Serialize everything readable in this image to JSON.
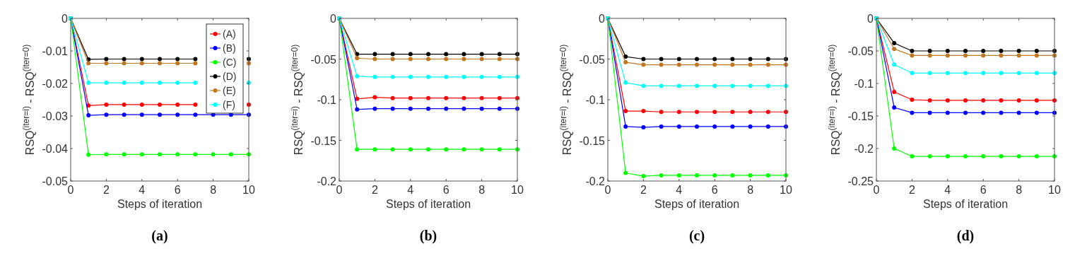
{
  "chart_data": [
    {
      "type": "line",
      "title": "(a)",
      "xlabel": "Steps of iteration",
      "ylabel": "RSQ$^{(iter=i)}$ - RSQ$^{(iter=0)}$",
      "x": [
        0,
        1,
        2,
        3,
        4,
        5,
        6,
        7,
        8,
        9,
        10
      ],
      "xlim": [
        0,
        10
      ],
      "xticks": [
        0,
        2,
        4,
        6,
        8,
        10
      ],
      "ylim": [
        -0.05,
        0
      ],
      "yticks": [
        -0.05,
        -0.04,
        -0.03,
        -0.02,
        -0.01,
        0
      ],
      "marker": "circle",
      "legend": "top right",
      "series": [
        {
          "name": "(A)",
          "color": "#ff0000",
          "values": [
            0,
            -0.0268,
            -0.0265,
            -0.0265,
            -0.0265,
            -0.0265,
            -0.0265,
            -0.0265,
            null,
            null,
            -0.0265
          ]
        },
        {
          "name": "(B)",
          "color": "#0000ff",
          "values": [
            0,
            -0.0298,
            -0.0296,
            -0.0296,
            -0.0296,
            -0.0296,
            -0.0296,
            -0.0296,
            -0.0296,
            -0.0296,
            -0.0296
          ]
        },
        {
          "name": "(C)",
          "color": "#00ff00",
          "values": [
            0,
            -0.0419,
            -0.0418,
            -0.0418,
            -0.0418,
            -0.0418,
            -0.0418,
            -0.0418,
            -0.0418,
            -0.0418,
            -0.0418
          ]
        },
        {
          "name": "(D)",
          "color": "#000000",
          "values": [
            0,
            -0.0126,
            -0.0125,
            -0.0125,
            -0.0125,
            -0.0125,
            -0.0125,
            -0.0125,
            null,
            null,
            -0.0125
          ]
        },
        {
          "name": "(E)",
          "color": "#c07820",
          "values": [
            0,
            -0.0138,
            -0.0138,
            -0.0138,
            -0.0138,
            -0.0138,
            -0.0138,
            -0.0138,
            null,
            null,
            -0.0138
          ]
        },
        {
          "name": "(F)",
          "color": "#00ffff",
          "values": [
            0,
            -0.0198,
            -0.0198,
            -0.0198,
            -0.0198,
            -0.0198,
            -0.0198,
            -0.0198,
            null,
            null,
            -0.0198
          ]
        }
      ]
    },
    {
      "type": "line",
      "title": "(b)",
      "xlabel": "Steps of iteration",
      "ylabel": "RSQ$^{(iter=i)}$ - RSQ$^{(iter=0)}$",
      "x": [
        0,
        1,
        2,
        3,
        4,
        5,
        6,
        7,
        8,
        9,
        10
      ],
      "xlim": [
        0,
        10
      ],
      "xticks": [
        0,
        2,
        4,
        6,
        8,
        10
      ],
      "ylim": [
        -0.2,
        0
      ],
      "yticks": [
        -0.2,
        -0.15,
        -0.1,
        -0.05,
        0
      ],
      "marker": "circle",
      "series": [
        {
          "color": "#ff0000",
          "values": [
            0,
            -0.099,
            -0.097,
            -0.098,
            -0.098,
            -0.098,
            -0.098,
            -0.098,
            -0.098,
            -0.098,
            -0.098
          ]
        },
        {
          "color": "#0000ff",
          "values": [
            0,
            -0.112,
            -0.111,
            -0.111,
            -0.111,
            -0.111,
            -0.111,
            -0.111,
            -0.111,
            -0.111,
            -0.111
          ]
        },
        {
          "color": "#00ff00",
          "values": [
            0,
            -0.161,
            -0.161,
            -0.161,
            -0.161,
            -0.161,
            -0.161,
            -0.161,
            -0.161,
            -0.161,
            -0.161
          ]
        },
        {
          "color": "#000000",
          "values": [
            0,
            -0.044,
            -0.044,
            -0.044,
            -0.044,
            -0.044,
            -0.044,
            -0.044,
            -0.044,
            -0.044,
            -0.044
          ]
        },
        {
          "color": "#c07820",
          "values": [
            0,
            -0.049,
            -0.05,
            -0.05,
            -0.05,
            -0.05,
            -0.05,
            -0.05,
            -0.05,
            -0.05,
            -0.05
          ]
        },
        {
          "color": "#00ffff",
          "values": [
            0,
            -0.071,
            -0.072,
            -0.072,
            -0.072,
            -0.072,
            -0.072,
            -0.072,
            -0.072,
            -0.072,
            -0.072
          ]
        }
      ]
    },
    {
      "type": "line",
      "title": "(c)",
      "xlabel": "Steps of iteration",
      "ylabel": "RSQ$^{(iter=i)}$ - RSQ$^{(iter=0)}$",
      "x": [
        0,
        1,
        2,
        3,
        4,
        5,
        6,
        7,
        8,
        9,
        10
      ],
      "xlim": [
        0,
        10
      ],
      "xticks": [
        0,
        2,
        4,
        6,
        8,
        10
      ],
      "ylim": [
        -0.2,
        0
      ],
      "yticks": [
        -0.2,
        -0.15,
        -0.1,
        -0.05,
        0
      ],
      "marker": "circle",
      "series": [
        {
          "color": "#ff0000",
          "values": [
            0,
            -0.114,
            -0.114,
            -0.115,
            -0.115,
            -0.115,
            -0.115,
            -0.115,
            -0.115,
            -0.115,
            -0.115
          ]
        },
        {
          "color": "#0000ff",
          "values": [
            0,
            -0.133,
            -0.134,
            -0.133,
            -0.133,
            -0.133,
            -0.133,
            -0.133,
            -0.133,
            -0.133,
            -0.133
          ]
        },
        {
          "color": "#00ff00",
          "values": [
            0,
            -0.19,
            -0.194,
            -0.193,
            -0.193,
            -0.193,
            -0.193,
            -0.193,
            -0.193,
            -0.193,
            -0.193
          ]
        },
        {
          "color": "#000000",
          "values": [
            0,
            -0.047,
            -0.05,
            -0.05,
            -0.05,
            -0.05,
            -0.05,
            -0.05,
            -0.05,
            -0.05,
            -0.05
          ]
        },
        {
          "color": "#c07820",
          "values": [
            0,
            -0.054,
            -0.057,
            -0.057,
            -0.057,
            -0.057,
            -0.057,
            -0.057,
            -0.057,
            -0.057,
            -0.057
          ]
        },
        {
          "color": "#00ffff",
          "values": [
            0,
            -0.079,
            -0.083,
            -0.083,
            -0.083,
            -0.083,
            -0.083,
            -0.083,
            -0.083,
            -0.083,
            -0.083
          ]
        }
      ]
    },
    {
      "type": "line",
      "title": "(d)",
      "xlabel": "Steps of iteration",
      "ylabel": "RSQ$^{(iter=i)}$ - RSQ$^{(iter=0)}$",
      "x": [
        0,
        1,
        2,
        3,
        4,
        5,
        6,
        7,
        8,
        9,
        10
      ],
      "xlim": [
        0,
        10
      ],
      "xticks": [
        0,
        2,
        4,
        6,
        8,
        10
      ],
      "ylim": [
        -0.25,
        0
      ],
      "yticks": [
        -0.25,
        -0.2,
        -0.15,
        -0.1,
        -0.05,
        0
      ],
      "marker": "circle",
      "series": [
        {
          "color": "#ff0000",
          "values": [
            0,
            -0.113,
            -0.125,
            -0.126,
            -0.126,
            -0.126,
            -0.126,
            -0.126,
            -0.126,
            -0.126,
            -0.126
          ]
        },
        {
          "color": "#0000ff",
          "values": [
            0,
            -0.137,
            -0.145,
            -0.145,
            -0.145,
            -0.145,
            -0.145,
            -0.145,
            -0.145,
            -0.145,
            -0.145
          ]
        },
        {
          "color": "#00ff00",
          "values": [
            0,
            -0.2,
            -0.212,
            -0.212,
            -0.212,
            -0.212,
            -0.212,
            -0.212,
            -0.212,
            -0.212,
            -0.212
          ]
        },
        {
          "color": "#000000",
          "values": [
            0,
            -0.038,
            -0.05,
            -0.05,
            -0.05,
            -0.05,
            -0.05,
            -0.05,
            -0.05,
            -0.05,
            -0.05
          ]
        },
        {
          "color": "#c07820",
          "values": [
            0,
            -0.047,
            -0.057,
            -0.057,
            -0.057,
            -0.057,
            -0.057,
            -0.057,
            -0.057,
            -0.057,
            -0.057
          ]
        },
        {
          "color": "#00ffff",
          "values": [
            0,
            -0.071,
            -0.084,
            -0.084,
            -0.084,
            -0.084,
            -0.084,
            -0.084,
            -0.084,
            -0.084,
            -0.084
          ]
        }
      ]
    }
  ]
}
